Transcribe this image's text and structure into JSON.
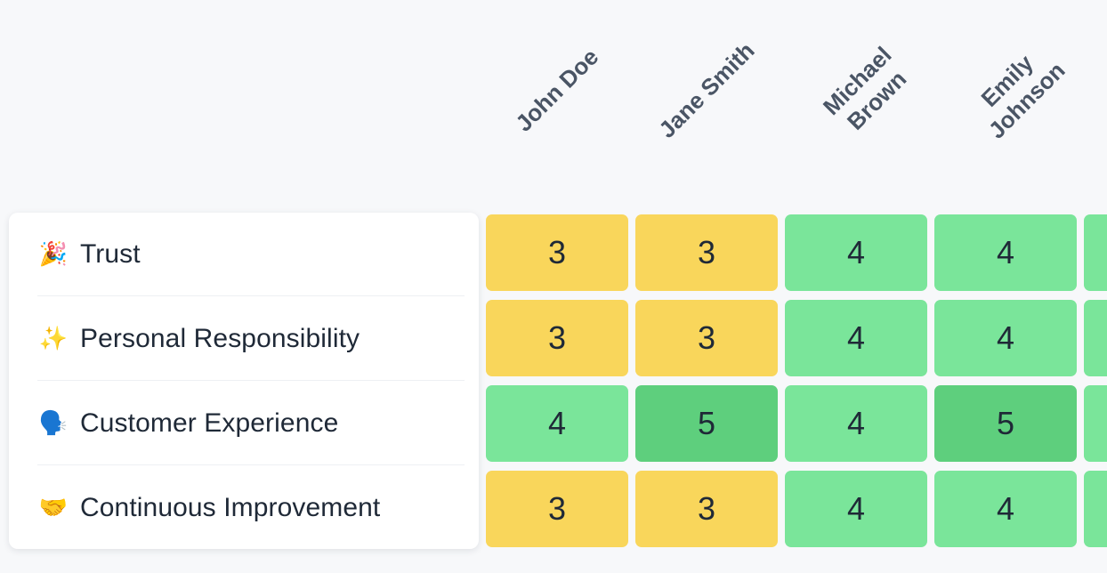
{
  "people": [
    {
      "name": "John Doe"
    },
    {
      "name": "Jane Smith"
    },
    {
      "name": "Michael\nBrown"
    },
    {
      "name": "Emily\nJohnson"
    }
  ],
  "values": [
    {
      "emoji": "🎉",
      "icon": "party-popper-icon",
      "label": "Trust"
    },
    {
      "emoji": "✨",
      "icon": "sparkles-icon",
      "label": "Personal Responsibility"
    },
    {
      "emoji": "🗣️",
      "icon": "speaking-head-icon",
      "label": "Customer Experience"
    },
    {
      "emoji": "🤝",
      "icon": "handshake-icon",
      "label": "Continuous Improvement"
    }
  ],
  "scores": [
    [
      "3",
      "3",
      "4",
      "4"
    ],
    [
      "3",
      "3",
      "4",
      "4"
    ],
    [
      "4",
      "5",
      "4",
      "5"
    ],
    [
      "3",
      "3",
      "4",
      "4"
    ]
  ],
  "colors": {
    "score_3": "#f9d65b",
    "score_4": "#7ae59a",
    "score_5": "#5ecf7d"
  }
}
